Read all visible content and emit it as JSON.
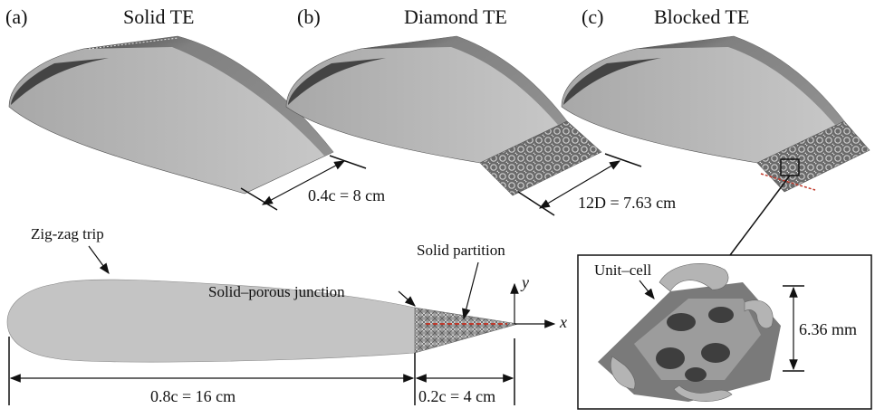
{
  "panels": [
    {
      "tag": "(a)",
      "title": "Solid TE",
      "dimension": "0.4c = 8 cm"
    },
    {
      "tag": "(b)",
      "title": "Diamond TE",
      "dimension": "12D = 7.63 cm"
    },
    {
      "tag": "(c)",
      "title": "Blocked TE",
      "dimension": ""
    }
  ],
  "profile": {
    "zigzag_label": "Zig-zag trip",
    "junction_label": "Solid–porous junction",
    "partition_label": "Solid partition",
    "x_axis": "x",
    "y_axis": "y",
    "solid_dimension": "0.8c = 16 cm",
    "porous_dimension": "0.2c = 4 cm"
  },
  "inset": {
    "label": "Unit–cell",
    "dimension": "6.36 mm"
  },
  "colors": {
    "surface_light": "#bdbdbd",
    "surface_dark": "#6e6e6e",
    "profile_fill": "#c4c4c4",
    "partition": "#c0392b"
  }
}
